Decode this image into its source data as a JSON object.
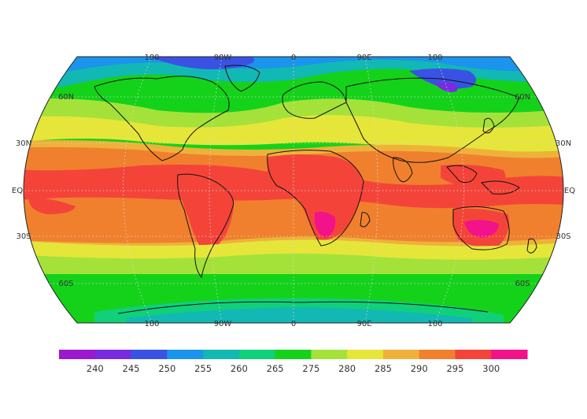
{
  "map": {
    "projection": "robinson",
    "graticule_style": "dotted",
    "coastlines": true,
    "top_lon_labels": [
      "180",
      "90W",
      "0",
      "90E",
      "180"
    ],
    "bottom_lon_labels": [
      "180",
      "90W",
      "0",
      "90E",
      "180"
    ],
    "left_lat_labels": [
      "60N",
      "30N",
      "EQ",
      "30S",
      "60S"
    ],
    "right_lat_labels": [
      "60N",
      "30N",
      "EQ",
      "30S",
      "60S"
    ]
  },
  "colorbar": {
    "orientation": "horizontal",
    "position": "bottom",
    "tick_labels": [
      "240",
      "245",
      "250",
      "255",
      "260",
      "265",
      "275",
      "280",
      "285",
      "290",
      "295",
      "300"
    ],
    "colors": [
      "#9a18d0",
      "#7a2ae0",
      "#3a52e4",
      "#1a94ec",
      "#12b8b4",
      "#10d07a",
      "#14d21a",
      "#a4e23a",
      "#e6e63a",
      "#eeb23a",
      "#f0802e",
      "#f4443a",
      "#f2128a"
    ]
  }
}
